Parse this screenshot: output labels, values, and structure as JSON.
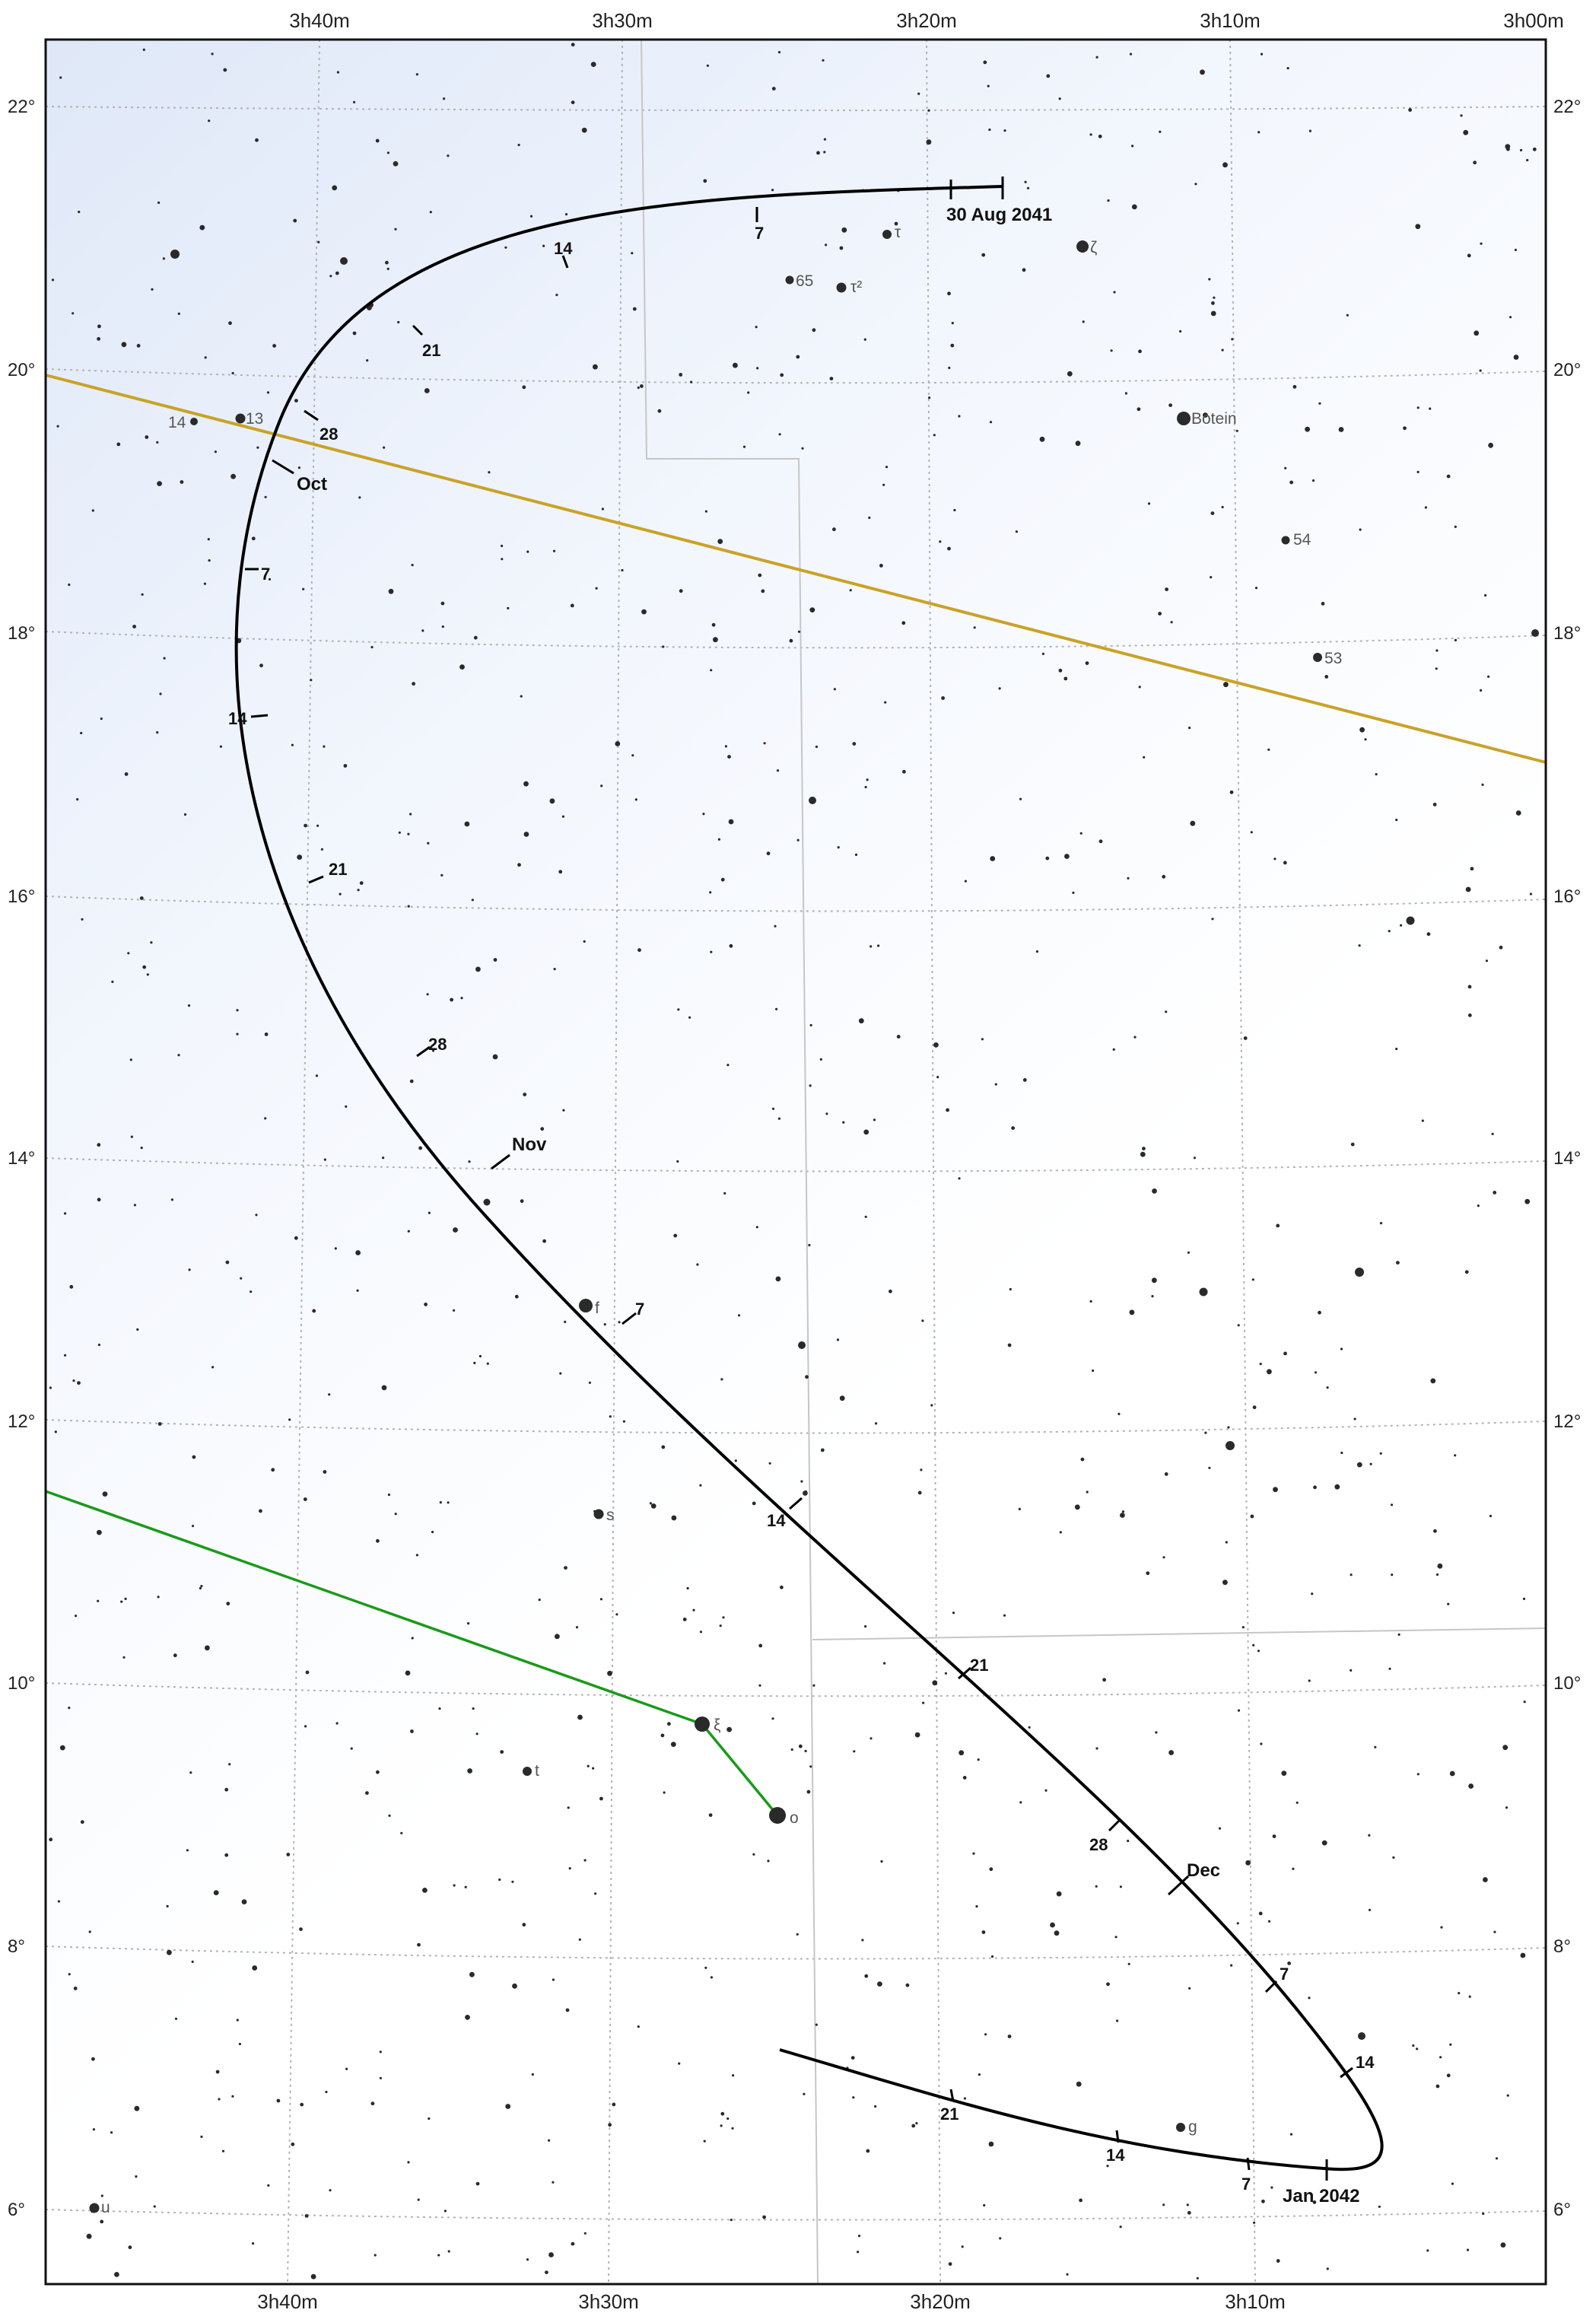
{
  "chart": {
    "ra_labels_top": [
      "3h40m",
      "3h30m",
      "3h20m",
      "3h10m",
      "3h00m"
    ],
    "ra_labels_bottom": [
      "3h40m",
      "3h30m",
      "3h20m",
      "3h10m"
    ],
    "dec_labels": [
      "22°",
      "20°",
      "18°",
      "16°",
      "14°",
      "12°",
      "10°",
      "8°",
      "6°"
    ]
  },
  "colors": {
    "ecliptic": "#c9a227",
    "constellation_figure": "#1a9a1a",
    "path": "#000000",
    "grid": "#b0b0b0",
    "boundary": "#c8c8c8"
  },
  "path_labels": {
    "start": "30 Aug 2041",
    "oct": "Oct",
    "nov": "Nov",
    "dec": "Dec",
    "jan": "Jan 2042",
    "d7": "7",
    "d14": "14",
    "d21": "21",
    "d28": "28"
  },
  "star_labels": {
    "tau": "τ",
    "zeta": "ζ",
    "s65": "65",
    "tau2": "τ²",
    "botein": "Botein",
    "s13": "13",
    "s14": "14",
    "s54": "54",
    "s53": "53",
    "f": "f",
    "s": "s",
    "xi": "ξ",
    "omicron": "o",
    "t": "t",
    "g": "g",
    "u": "u"
  }
}
